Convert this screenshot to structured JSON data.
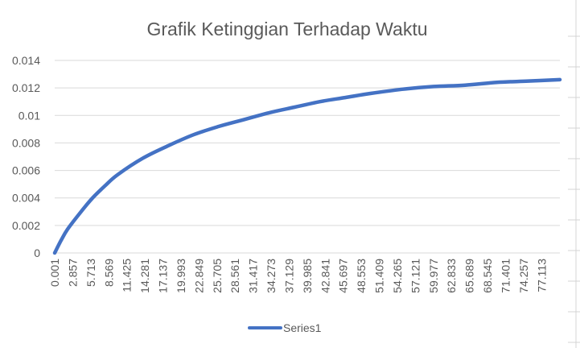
{
  "chart_data": {
    "type": "line",
    "title": "Grafik Ketinggian Terhadap Waktu",
    "xlabel": "",
    "ylabel": "",
    "ylim": [
      0,
      0.014
    ],
    "yticks": [
      "0",
      "0.002",
      "0.004",
      "0.006",
      "0.008",
      "0.01",
      "0.012",
      "0.014"
    ],
    "xlim": [
      0.001,
      80
    ],
    "x_tick_labels": [
      "0.001",
      "2.857",
      "5.713",
      "8.569",
      "11.425",
      "14.281",
      "17.137",
      "19.993",
      "22.849",
      "25.705",
      "28.561",
      "31.417",
      "34.273",
      "37.129",
      "39.985",
      "42.841",
      "45.697",
      "48.553",
      "51.409",
      "54.265",
      "57.121",
      "59.977",
      "62.833",
      "65.689",
      "68.545",
      "71.401",
      "74.257",
      "77.113"
    ],
    "grid": true,
    "legend_position": "bottom",
    "series": [
      {
        "name": "Series1",
        "color": "#4472c4",
        "x": [
          0.001,
          1,
          2,
          4,
          6,
          8,
          10,
          14,
          18,
          22,
          26,
          30,
          34,
          38,
          42,
          46,
          50,
          55,
          60,
          65,
          70,
          75,
          80
        ],
        "values": [
          0.0,
          0.0009,
          0.0017,
          0.0029,
          0.004,
          0.0049,
          0.0057,
          0.0069,
          0.0078,
          0.0086,
          0.0092,
          0.0097,
          0.0102,
          0.0106,
          0.011,
          0.0113,
          0.0116,
          0.0119,
          0.0121,
          0.0122,
          0.0124,
          0.0125,
          0.0126
        ]
      }
    ]
  }
}
